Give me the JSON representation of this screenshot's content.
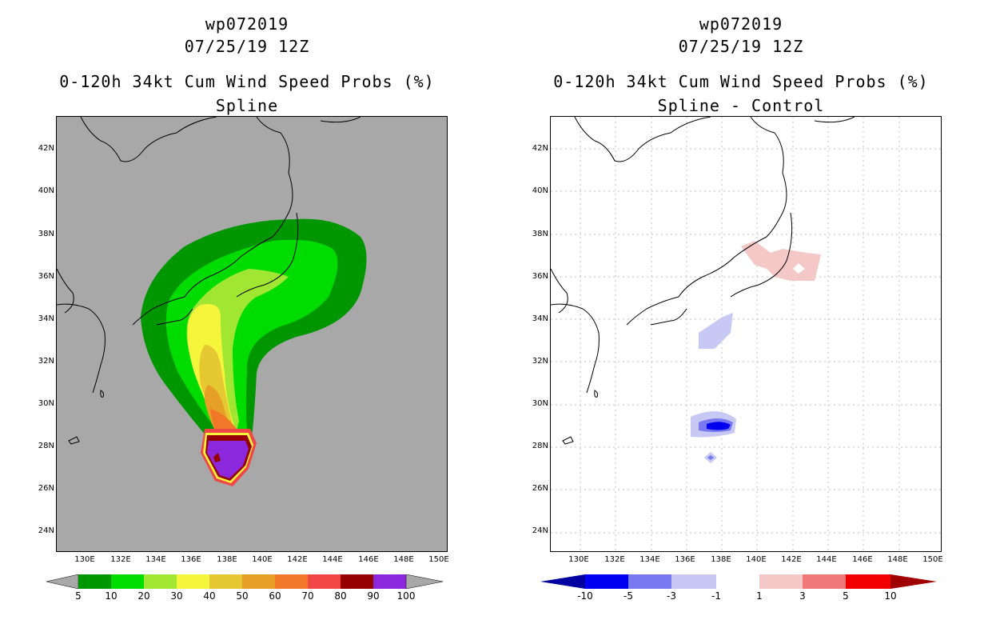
{
  "left_panel": {
    "storm_id": "wp072019",
    "datetime": "07/25/19 12Z",
    "product": "0-120h 34kt Cum Wind Speed Probs (%)",
    "subtitle": "Spline",
    "colorbar_labels": [
      "5",
      "10",
      "20",
      "30",
      "40",
      "50",
      "60",
      "70",
      "80",
      "90",
      "100"
    ],
    "colorbar_colors": [
      "#009600",
      "#00dc00",
      "#a0e632",
      "#f5f53c",
      "#e6c832",
      "#e6a028",
      "#f07828",
      "#f04646",
      "#960000",
      "#8c28dc"
    ],
    "map_background": "#a8a8a8"
  },
  "right_panel": {
    "storm_id": "wp072019",
    "datetime": "07/25/19 12Z",
    "product": "0-120h 34kt Cum Wind Speed Probs (%)",
    "subtitle": "Spline - Control",
    "colorbar_labels": [
      "-10",
      "-5",
      "-3",
      "-1",
      "1",
      "3",
      "5",
      "10"
    ],
    "colorbar_colors": [
      "#0000a0",
      "#0000f0",
      "#7878f0",
      "#c8c8f5",
      "#ffffff",
      "#f5c8c8",
      "#f07878",
      "#f00000",
      "#a00000"
    ],
    "map_background": "#ffffff"
  },
  "lat_labels": [
    "42N",
    "40N",
    "38N",
    "36N",
    "34N",
    "32N",
    "30N",
    "28N",
    "26N",
    "24N"
  ],
  "lon_labels": [
    "130E",
    "132E",
    "134E",
    "136E",
    "138E",
    "140E",
    "142E",
    "144E",
    "146E",
    "148E",
    "150E"
  ]
}
